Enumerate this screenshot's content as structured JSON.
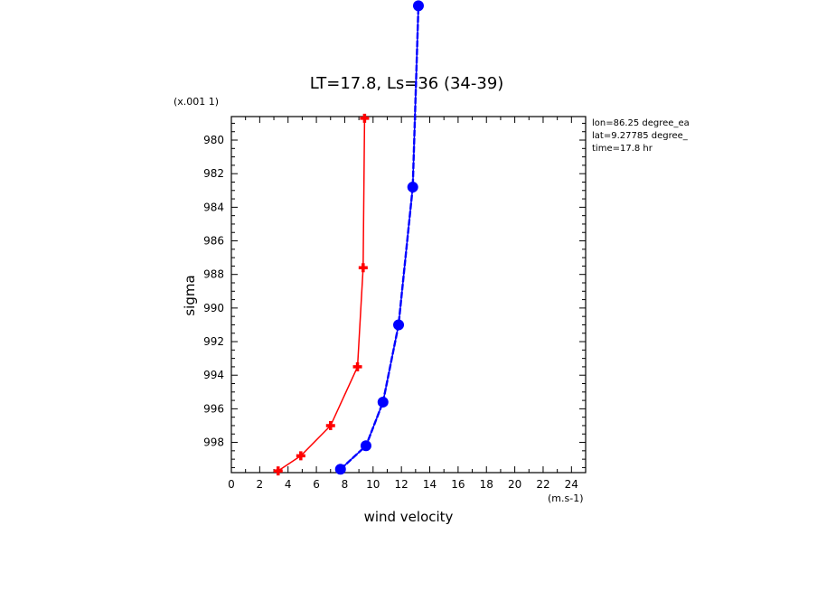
{
  "chart_data": {
    "type": "line",
    "title": "LT=17.8, Ls=36 (34-39)",
    "xlabel": "wind velocity",
    "ylabel": "sigma",
    "x_unit": "(m.s-1)",
    "y_unit": "(x.001 1)",
    "xlim": [
      0,
      25
    ],
    "ylim": [
      999.8,
      978.6
    ],
    "x_ticks": [
      0,
      2,
      4,
      6,
      8,
      10,
      12,
      14,
      16,
      18,
      20,
      22,
      24
    ],
    "y_ticks": [
      980,
      982,
      984,
      986,
      988,
      990,
      992,
      994,
      996,
      998
    ],
    "grid": false,
    "legend": "none",
    "info_lines": [
      "lon=86.25 degree_ea",
      "lat=9.27785 degree_",
      "time=17.8 hr"
    ],
    "series": [
      {
        "color": "#ff0000",
        "marker": "cross",
        "points": [
          {
            "x": 3.3,
            "y": 999.7
          },
          {
            "x": 4.9,
            "y": 998.8
          },
          {
            "x": 7.0,
            "y": 997.0
          },
          {
            "x": 8.9,
            "y": 993.5
          },
          {
            "x": 9.3,
            "y": 987.6
          },
          {
            "x": 9.4,
            "y": 978.7
          }
        ]
      },
      {
        "color": "#0000ff",
        "marker": "circle",
        "points": [
          {
            "x": 7.7,
            "y": 999.6
          },
          {
            "x": 9.5,
            "y": 998.2
          },
          {
            "x": 10.7,
            "y": 995.6
          },
          {
            "x": 11.8,
            "y": 991.0
          },
          {
            "x": 12.8,
            "y": 982.8
          },
          {
            "x": 13.2,
            "y": 972.0
          }
        ]
      }
    ]
  }
}
